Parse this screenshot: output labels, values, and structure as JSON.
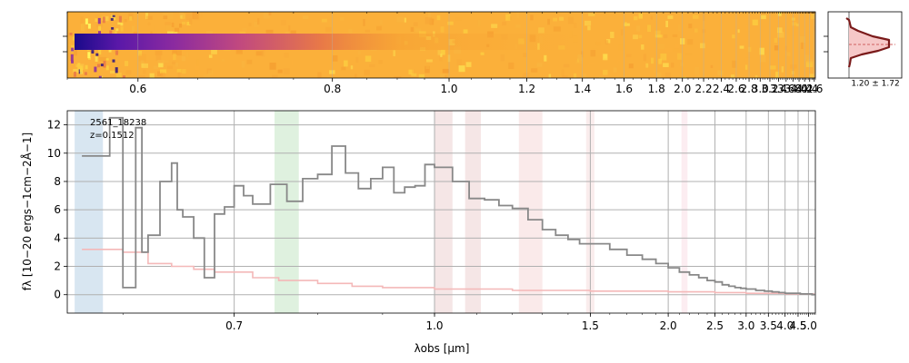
{
  "figure": {
    "object_id": "2561_18238",
    "redshift_label": "z=0.1512",
    "profile_label": "1.20 ± 1.72"
  },
  "chart_data": [
    {
      "type": "heatmap",
      "description_panel": "2D spectrum",
      "x_axis_scale": "reciprocal",
      "xlim": [
        0.55,
        4.65
      ],
      "xticks": [
        0.6,
        0.8,
        1.0,
        1.2,
        1.4,
        1.6,
        1.8,
        2.0,
        2.2,
        2.4,
        2.6,
        2.8,
        3.0,
        3.2,
        3.4,
        3.6,
        3.8,
        4.0,
        4.2,
        4.4,
        4.6
      ],
      "xtick_labels": [
        "0.6",
        "0.8",
        "1.0",
        "1.2",
        "1.4",
        "1.6",
        "1.8",
        "2.0",
        "2.2",
        "2.4",
        "2.6",
        "2.8",
        "3.0",
        "3.2",
        "3.4",
        "3.6",
        "3.8",
        "4.0",
        "4.2",
        "4.4",
        "4.6"
      ],
      "colormap": "plasma",
      "trace_center_fraction": 0.4
    },
    {
      "type": "line",
      "description_panel": "spatial profile",
      "label": "1.20 ± 1.72",
      "colors": {
        "fill": "#f6c8c8",
        "line": "#7a1a1a",
        "dashed": "#d06060"
      }
    },
    {
      "type": "line",
      "x_axis_scale": "reciprocal",
      "xlabel": "λobs [μm]",
      "ylabel": "fλ [10−20 ergs−1cm−2Å−1]",
      "xlim": [
        0.56,
        5.4
      ],
      "ylim": [
        -1.3,
        13
      ],
      "xticks": [
        0.7,
        1.0,
        1.5,
        2.0,
        2.5,
        3.0,
        3.5,
        4.0,
        4.5,
        5.0
      ],
      "xtick_labels": [
        "0.7",
        "1.0",
        "1.5",
        "2.0",
        "2.5",
        "3.0",
        "3.5",
        "4.0",
        "4.5",
        "5.0"
      ],
      "yticks": [
        0,
        2,
        4,
        6,
        8,
        10,
        12
      ],
      "grid": true,
      "annotation": [
        "2561_18238",
        "z=0.1512"
      ],
      "highlight_bands": [
        {
          "x0": 0.565,
          "x1": 0.585,
          "color": "#a8c8e0"
        },
        {
          "x0": 0.745,
          "x1": 0.775,
          "color": "#b8e0b8"
        },
        {
          "x0": 1.0,
          "x1": 1.04,
          "color": "#e8c8c8"
        },
        {
          "x0": 1.07,
          "x1": 1.11,
          "color": "#e8c8c8"
        },
        {
          "x0": 1.22,
          "x1": 1.3,
          "color": "#f4d0d0"
        },
        {
          "x0": 1.48,
          "x1": 1.52,
          "color": "#f4d8d8"
        },
        {
          "x0": 2.12,
          "x1": 2.18,
          "color": "#f8d8e0"
        }
      ],
      "series": [
        {
          "color": "#888888",
          "x": [
            0.57,
            0.59,
            0.6,
            0.61,
            0.615,
            0.62,
            0.63,
            0.64,
            0.645,
            0.65,
            0.66,
            0.67,
            0.68,
            0.69,
            0.7,
            0.71,
            0.72,
            0.74,
            0.76,
            0.78,
            0.8,
            0.82,
            0.84,
            0.86,
            0.88,
            0.9,
            0.92,
            0.94,
            0.96,
            0.98,
            1.0,
            1.04,
            1.08,
            1.12,
            1.16,
            1.2,
            1.25,
            1.3,
            1.35,
            1.4,
            1.45,
            1.5,
            1.6,
            1.7,
            1.8,
            1.9,
            2.0,
            2.1,
            2.2,
            2.3,
            2.4,
            2.5,
            2.6,
            2.7,
            2.8,
            2.9,
            3.0,
            3.2,
            3.4,
            3.6,
            3.8,
            4.0,
            4.2,
            4.4,
            4.6,
            4.8,
            5.0,
            5.2,
            5.35
          ],
          "y": [
            9.8,
            12.5,
            0.5,
            11.8,
            3.0,
            4.2,
            8.0,
            9.3,
            6.0,
            5.5,
            4.0,
            1.2,
            5.7,
            6.2,
            7.7,
            7.0,
            6.4,
            7.8,
            6.6,
            8.2,
            8.5,
            10.5,
            8.6,
            7.5,
            8.2,
            9.0,
            7.2,
            7.6,
            7.7,
            9.2,
            9.0,
            8.0,
            6.8,
            6.7,
            6.3,
            6.1,
            5.3,
            4.6,
            4.2,
            3.9,
            3.6,
            3.6,
            3.2,
            2.8,
            2.5,
            2.2,
            1.9,
            1.6,
            1.4,
            1.2,
            1.0,
            0.9,
            0.7,
            0.6,
            0.5,
            0.45,
            0.4,
            0.3,
            0.25,
            0.2,
            0.15,
            0.1,
            0.1,
            0.1,
            0.05,
            0.05,
            0.05,
            0.0,
            0.0
          ]
        },
        {
          "color": "#f4b8b8",
          "x": [
            0.57,
            0.6,
            0.62,
            0.64,
            0.66,
            0.68,
            0.7,
            0.72,
            0.75,
            0.8,
            0.85,
            0.9,
            1.0,
            1.2,
            1.5,
            2.0,
            2.5,
            3.0,
            4.0,
            5.0,
            5.35
          ],
          "y": [
            3.2,
            3.0,
            2.2,
            2.0,
            1.8,
            1.6,
            1.6,
            1.2,
            1.0,
            0.8,
            0.6,
            0.5,
            0.4,
            0.3,
            0.25,
            0.2,
            0.15,
            0.1,
            0.05,
            0.05,
            0.05
          ]
        }
      ]
    }
  ]
}
